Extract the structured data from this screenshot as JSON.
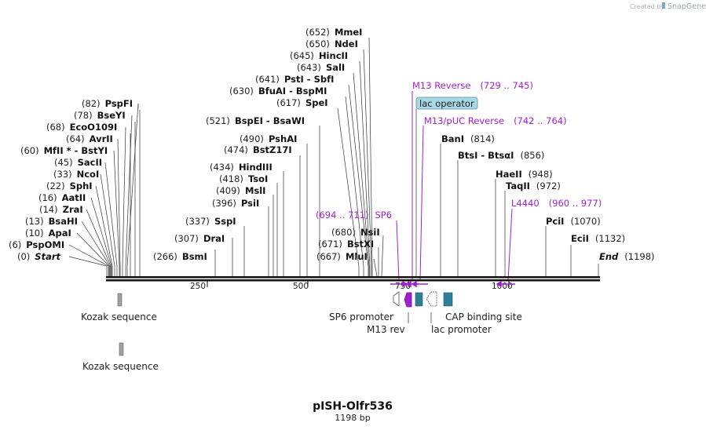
{
  "watermark": {
    "created_by": "Created by",
    "app": "SnapGene"
  },
  "map": {
    "title": "pISH-Olfr536",
    "subtitle": "1198 bp",
    "length": 1198
  },
  "ticks": [
    "250",
    "500",
    "750",
    "1000"
  ],
  "enzymes": [
    {
      "pos": "(0)",
      "name": "Start",
      "italic": true
    },
    {
      "pos": "(6)",
      "name": "PspOMI"
    },
    {
      "pos": "(10)",
      "name": "ApaI"
    },
    {
      "pos": "(13)",
      "name": "BsaHI"
    },
    {
      "pos": "(14)",
      "name": "ZraI"
    },
    {
      "pos": "(16)",
      "name": "AatII"
    },
    {
      "pos": "(22)",
      "name": "SphI"
    },
    {
      "pos": "(33)",
      "name": "NcoI"
    },
    {
      "pos": "(45)",
      "name": "SacII"
    },
    {
      "pos": "(60)",
      "name": "MfII *  -  BstYI"
    },
    {
      "pos": "(64)",
      "name": "AvrII"
    },
    {
      "pos": "(68)",
      "name": "EcoO109I"
    },
    {
      "pos": "(78)",
      "name": "BseYI"
    },
    {
      "pos": "(82)",
      "name": "PspFI"
    },
    {
      "pos": "(266)",
      "name": "BsmI"
    },
    {
      "pos": "(307)",
      "name": "DraI"
    },
    {
      "pos": "(337)",
      "name": "SspI"
    },
    {
      "pos": "(396)",
      "name": "PsiI"
    },
    {
      "pos": "(409)",
      "name": "MslI"
    },
    {
      "pos": "(418)",
      "name": "TsoI"
    },
    {
      "pos": "(434)",
      "name": "HindIII"
    },
    {
      "pos": "(474)",
      "name": "BstZ17I"
    },
    {
      "pos": "(490)",
      "name": "PshAI"
    },
    {
      "pos": "(521)",
      "name": "BspEI  -  BsaWI"
    },
    {
      "pos": "(617)",
      "name": "SpeI"
    },
    {
      "pos": "(630)",
      "name": "BfuAI  -  BspMI"
    },
    {
      "pos": "(641)",
      "name": "PstI  -  SbfI"
    },
    {
      "pos": "(643)",
      "name": "SalI"
    },
    {
      "pos": "(645)",
      "name": "HincII"
    },
    {
      "pos": "(650)",
      "name": "NdeI"
    },
    {
      "pos": "(652)",
      "name": "MmeI"
    },
    {
      "pos": "(667)",
      "name": "MluI"
    },
    {
      "pos": "(671)",
      "name": "BstXI"
    },
    {
      "pos": "(680)",
      "name": "NsiI"
    },
    {
      "name": "BanI",
      "pos": "(814)"
    },
    {
      "name": "BtsI  -  BtsαI",
      "pos": "(856)"
    },
    {
      "name": "HaeII",
      "pos": "(948)"
    },
    {
      "name": "TaqII",
      "pos": "(972)"
    },
    {
      "name": "PciI",
      "pos": "(1070)"
    },
    {
      "name": "EciI",
      "pos": "(1132)"
    },
    {
      "name": "End",
      "pos": "(1198)",
      "italic": true
    }
  ],
  "primers": [
    {
      "name": "M13 Reverse",
      "range": "(729 .. 745)"
    },
    {
      "name": "M13/pUC Reverse",
      "range": "(742 .. 764)"
    },
    {
      "range": "(694 .. 711)",
      "name": "SP6"
    },
    {
      "name": "L4440",
      "range": "(960 .. 977)"
    }
  ],
  "lac_operator": "lac operator",
  "features": {
    "kozak1": "Kozak sequence",
    "kozak2": "Kozak sequence",
    "sp6_promoter": "SP6 promoter",
    "m13_rev": "M13 rev",
    "lac_promoter": "lac promoter",
    "cap_site": "CAP binding site"
  },
  "colors": {
    "primer": "#a020d0",
    "feature_teal": "#2e7f96",
    "feature_grey": "#a0a0a0",
    "lac_operator_fill": "#a8d8e6"
  }
}
